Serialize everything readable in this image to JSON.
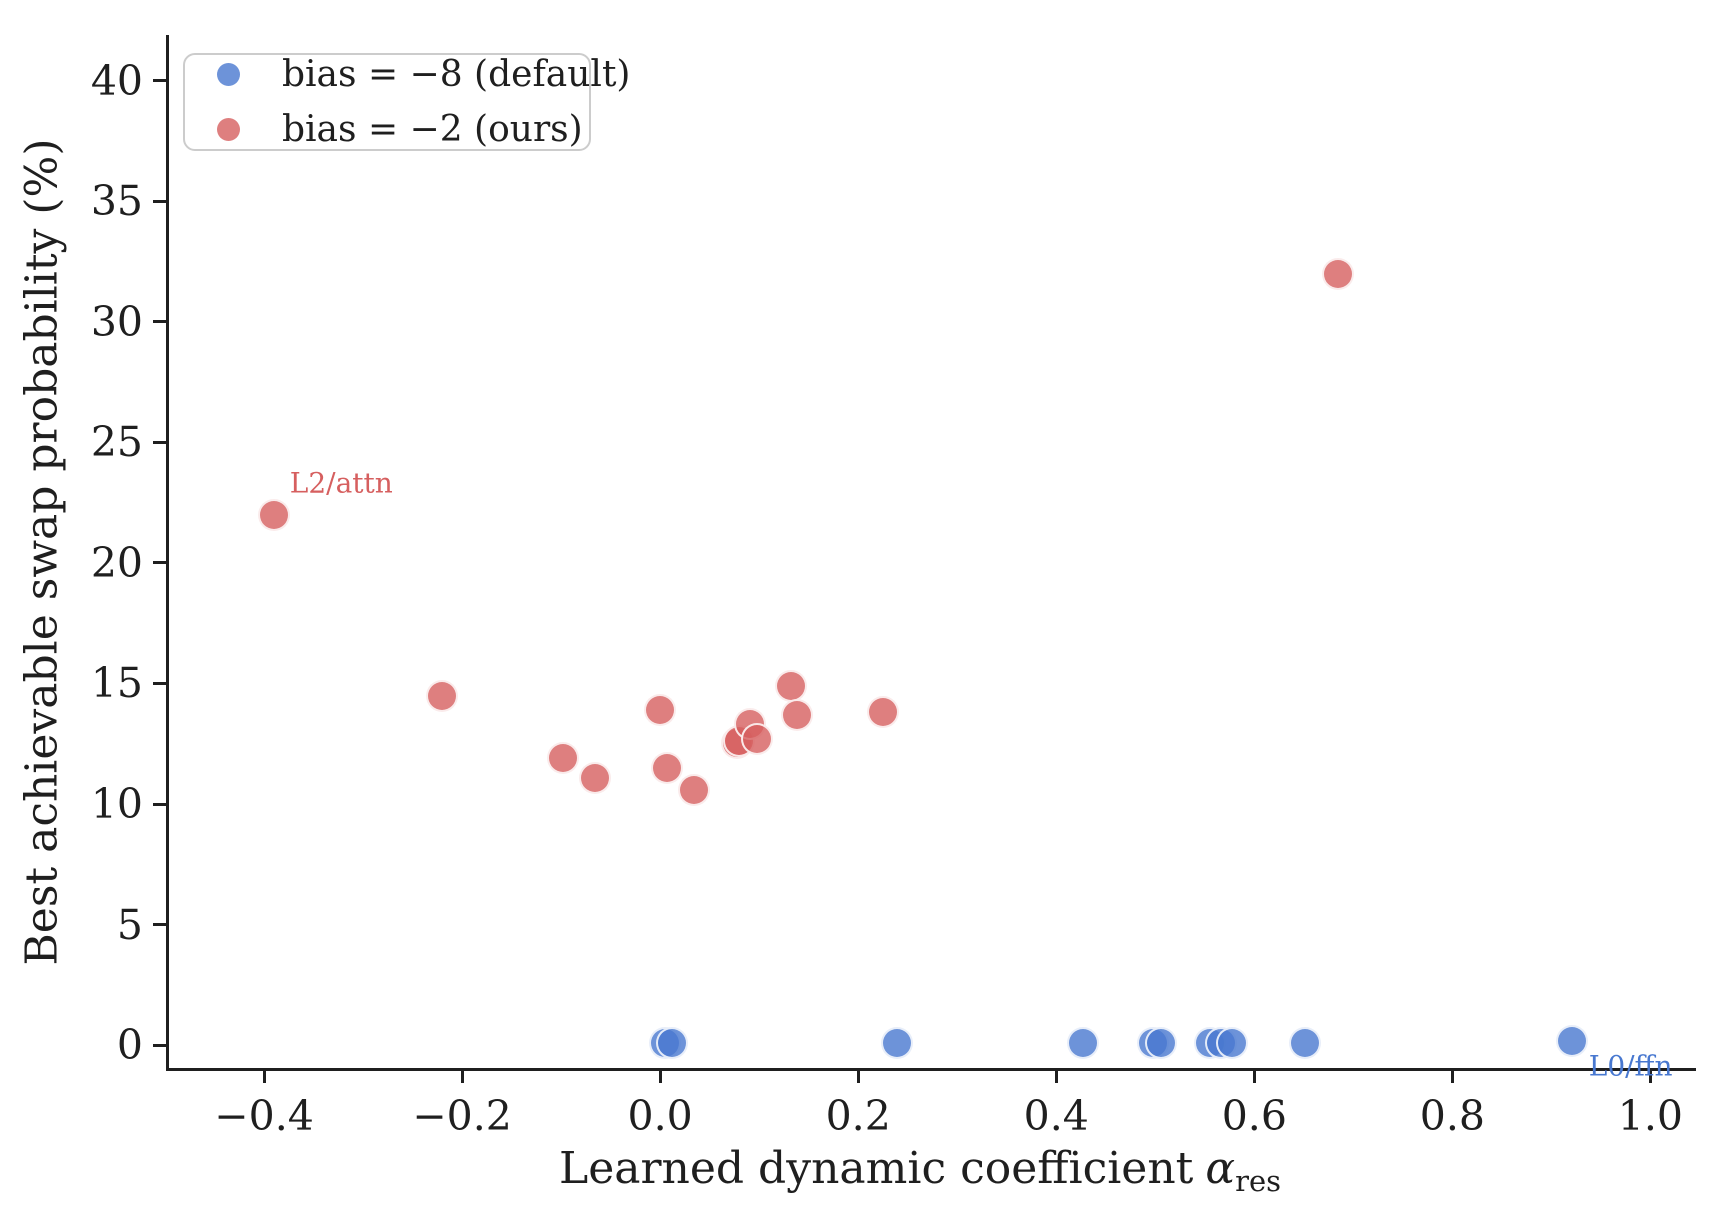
{
  "chart_data": {
    "type": "scatter",
    "title": "",
    "xlabel": {
      "text": "Learned dynamic coefficient",
      "symbol": "α",
      "subscript": "res"
    },
    "ylabel": "Best achievable swap probability (%)",
    "xlim": [
      -0.497,
      1.043
    ],
    "ylim": [
      -0.95,
      41.9
    ],
    "grid": false,
    "legend_position": "upper-left",
    "xticks": [
      {
        "value": -0.4,
        "label": "−0.4"
      },
      {
        "value": -0.2,
        "label": "−0.2"
      },
      {
        "value": 0.0,
        "label": "0.0"
      },
      {
        "value": 0.2,
        "label": "0.2"
      },
      {
        "value": 0.4,
        "label": "0.4"
      },
      {
        "value": 0.6,
        "label": "0.6"
      },
      {
        "value": 0.8,
        "label": "0.8"
      },
      {
        "value": 1.0,
        "label": "1.0"
      }
    ],
    "yticks": [
      {
        "value": 0,
        "label": "0"
      },
      {
        "value": 5,
        "label": "5"
      },
      {
        "value": 10,
        "label": "10"
      },
      {
        "value": 15,
        "label": "15"
      },
      {
        "value": 20,
        "label": "20"
      },
      {
        "value": 25,
        "label": "25"
      },
      {
        "value": 30,
        "label": "30"
      },
      {
        "value": 35,
        "label": "35"
      },
      {
        "value": 40,
        "label": "40"
      }
    ],
    "series": [
      {
        "name": "bias-default",
        "label": "bias = −8 (default)",
        "color": "#4878D0",
        "fill": "rgba(72,120,208,0.8)",
        "points": [
          [
            0.005,
            0.1
          ],
          [
            0.012,
            0.1
          ],
          [
            0.239,
            0.1
          ],
          [
            0.427,
            0.1
          ],
          [
            0.498,
            0.1
          ],
          [
            0.506,
            0.1
          ],
          [
            0.555,
            0.1
          ],
          [
            0.566,
            0.1
          ],
          [
            0.577,
            0.1
          ],
          [
            0.651,
            0.1
          ],
          [
            0.921,
            0.15
          ]
        ]
      },
      {
        "name": "bias-ours",
        "label": "bias = −2 (ours)",
        "color": "#D65F5F",
        "fill": "rgba(214,95,95,0.8)",
        "points": [
          [
            -0.39,
            22.0
          ],
          [
            -0.22,
            14.5
          ],
          [
            -0.098,
            11.9
          ],
          [
            -0.066,
            11.1
          ],
          [
            0.0,
            13.9
          ],
          [
            0.007,
            11.5
          ],
          [
            0.034,
            10.6
          ],
          [
            0.078,
            12.55
          ],
          [
            0.08,
            12.6
          ],
          [
            0.091,
            13.3
          ],
          [
            0.098,
            12.7
          ],
          [
            0.132,
            14.9
          ],
          [
            0.138,
            13.7
          ],
          [
            0.225,
            13.8
          ],
          [
            0.685,
            32.0
          ]
        ]
      }
    ],
    "annotations": [
      {
        "text": "L2/attn",
        "x": -0.322,
        "y": 23.3,
        "color": "#D65F5F"
      },
      {
        "text": "L0/ffn",
        "x": 0.98,
        "y": -0.87,
        "color": "#4878D0"
      }
    ]
  }
}
